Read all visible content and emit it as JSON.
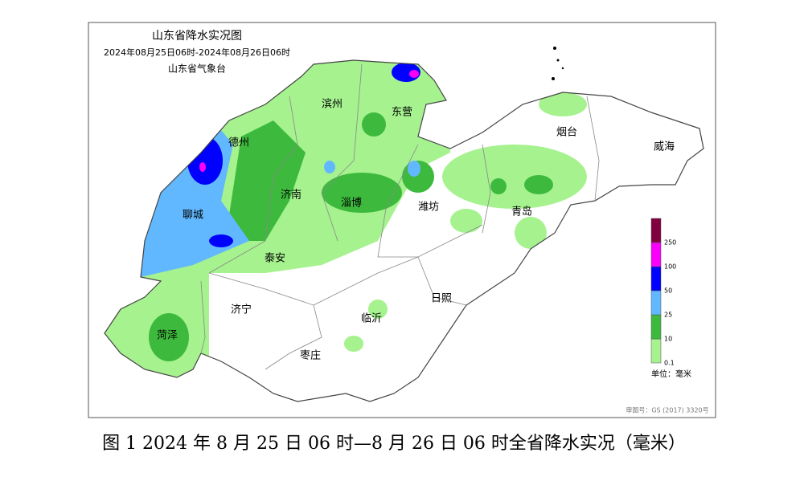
{
  "header": {
    "title": "山东省降水实况图",
    "period": "2024年08月25日06时-2024年08月26日06时",
    "agency": "山东省气象台"
  },
  "cities": [
    "滨州",
    "东营",
    "德州",
    "烟台",
    "威海",
    "济南",
    "淄博",
    "潍坊",
    "聊城",
    "青岛",
    "泰安",
    "日照",
    "济宁",
    "临沂",
    "菏泽",
    "枣庄"
  ],
  "legend": {
    "ticks": [
      0.1,
      10,
      25,
      50,
      100,
      250
    ],
    "colors": [
      "#a6f28f",
      "#3dba3d",
      "#61b8ff",
      "#0000fe",
      "#fa00fa",
      "#800040"
    ],
    "unit": "单位：毫米"
  },
  "approval": "审图号：GS (2017) 3320号",
  "caption": "图 1 2024 年 8 月 25 日 06 时—8 月 26 日 06 时全省降水实况（毫米）"
}
